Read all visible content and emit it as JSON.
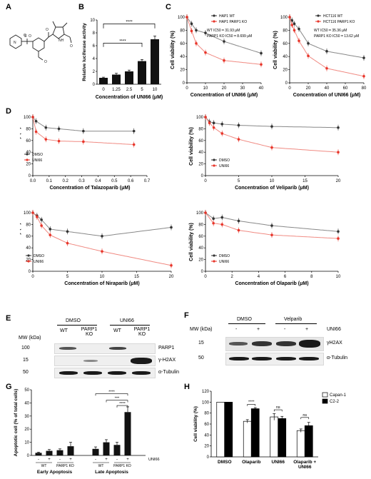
{
  "panels": {
    "A": "A",
    "B": "B",
    "C": "C",
    "D": "D",
    "E": "E",
    "F": "F",
    "G": "G",
    "H": "H"
  },
  "panelB": {
    "chart_data": {
      "type": "bar",
      "categories": [
        "0",
        "1.25",
        "2.5",
        "5",
        "10"
      ],
      "values": [
        1.0,
        1.5,
        2.0,
        3.6,
        7.0
      ],
      "errors": [
        0.1,
        0.2,
        0.2,
        0.25,
        0.5
      ],
      "xlabel": "Concentration of UNI66 (μM)",
      "ylabel": "Relative luciferase activity",
      "ylim": [
        0,
        10
      ],
      "yticks": [
        0,
        2,
        4,
        6,
        8,
        10
      ],
      "significance": [
        "****",
        "****"
      ]
    }
  },
  "panelC1": {
    "chart_data": {
      "type": "scatter",
      "xlabel": "Concentration of UNI66 (μM)",
      "ylabel": "Cell viability (%)",
      "xlim": [
        0,
        40
      ],
      "ylim": [
        0,
        100
      ],
      "xticks": [
        0,
        10,
        20,
        30,
        40
      ],
      "yticks": [
        0,
        20,
        40,
        60,
        80,
        100
      ],
      "series": [
        {
          "name": "HAP1 WT",
          "color": "#333333",
          "x": [
            0,
            2.5,
            5,
            10,
            20,
            40
          ],
          "y": [
            100,
            90,
            80,
            76,
            63,
            45
          ]
        },
        {
          "name": "HAP1 PARP1 KO",
          "color": "#e8362b",
          "x": [
            0,
            2.5,
            5,
            10,
            20,
            40
          ],
          "y": [
            100,
            79,
            60,
            46,
            34,
            28
          ]
        }
      ],
      "annotations": [
        "WT IC50 = 31.93 μM",
        "PARP1 KO IC50 = 8.699 μM"
      ]
    }
  },
  "panelC2": {
    "chart_data": {
      "type": "scatter",
      "xlabel": "Concentration of UNI66 (μM)",
      "ylabel": "Cell viability (%)",
      "xlim": [
        0,
        80
      ],
      "ylim": [
        0,
        100
      ],
      "xticks": [
        0,
        20,
        40,
        60,
        80
      ],
      "yticks": [
        0,
        20,
        40,
        60,
        80,
        100
      ],
      "series": [
        {
          "name": "HCT116 WT",
          "color": "#333333",
          "x": [
            0,
            2.5,
            5,
            10,
            20,
            40,
            80
          ],
          "y": [
            100,
            95,
            90,
            82,
            60,
            48,
            38
          ]
        },
        {
          "name": "HCT116 PARP1 KO",
          "color": "#e8362b",
          "x": [
            0,
            2.5,
            5,
            10,
            20,
            40,
            80
          ],
          "y": [
            100,
            88,
            80,
            64,
            41,
            22,
            10
          ]
        }
      ],
      "annotations": [
        "WT IC50 = 35.36 μM",
        "PARP1 KO IC50 = 13.62 μM"
      ]
    }
  },
  "panelD1": {
    "chart_data": {
      "type": "scatter",
      "xlabel": "Concentration of Talazoparib (μM)",
      "ylabel": "Cell viability (%)",
      "xlim": [
        0,
        0.7
      ],
      "ylim": [
        0,
        100
      ],
      "xticks": [
        0.0,
        0.1,
        0.2,
        0.3,
        0.4,
        0.5,
        0.6,
        0.7
      ],
      "xticklabels": [
        "0.0",
        "0.1",
        "0.2",
        "0.3",
        "0.4",
        "0.5",
        "0.6",
        "0.7"
      ],
      "yticks": [
        0,
        20,
        40,
        60,
        80,
        100
      ],
      "series": [
        {
          "name": "DMSO",
          "color": "#333333",
          "x": [
            0,
            0.02,
            0.08,
            0.16,
            0.31,
            0.62
          ],
          "y": [
            100,
            93,
            82,
            80,
            76,
            76
          ]
        },
        {
          "name": "UNI66",
          "color": "#e8362b",
          "x": [
            0,
            0.02,
            0.08,
            0.16,
            0.31,
            0.62
          ],
          "y": [
            100,
            75,
            62,
            59,
            58,
            53
          ]
        }
      ]
    }
  },
  "panelD2": {
    "chart_data": {
      "type": "scatter",
      "xlabel": "Concentration of Veliparib (μM)",
      "ylabel": "Cell viability (%)",
      "xlim": [
        0,
        20
      ],
      "ylim": [
        0,
        100
      ],
      "xticks": [
        0,
        5,
        10,
        15,
        20
      ],
      "yticks": [
        0,
        20,
        40,
        60,
        80,
        100
      ],
      "series": [
        {
          "name": "DMSO",
          "color": "#333333",
          "x": [
            0,
            0.6,
            1.25,
            2.5,
            5,
            10,
            20
          ],
          "y": [
            100,
            92,
            90,
            88,
            86,
            84,
            82
          ]
        },
        {
          "name": "UNI66",
          "color": "#e8362b",
          "x": [
            0,
            0.6,
            1.25,
            2.5,
            5,
            10,
            20
          ],
          "y": [
            100,
            90,
            82,
            72,
            62,
            48,
            40
          ]
        }
      ]
    }
  },
  "panelD3": {
    "chart_data": {
      "type": "scatter",
      "xlabel": "Concentration of Niraparib (μM)",
      "ylabel": "Cell viability (%)",
      "xlim": [
        0,
        20
      ],
      "ylim": [
        0,
        100
      ],
      "xticks": [
        0,
        5,
        10,
        15,
        20
      ],
      "yticks": [
        0,
        20,
        40,
        60,
        80,
        100
      ],
      "series": [
        {
          "name": "DMSO",
          "color": "#333333",
          "x": [
            0,
            0.6,
            1.25,
            2.5,
            5,
            10,
            20
          ],
          "y": [
            100,
            95,
            88,
            72,
            68,
            60,
            75
          ]
        },
        {
          "name": "UNI66",
          "color": "#e8362b",
          "x": [
            0,
            0.6,
            1.25,
            2.5,
            5,
            10,
            20
          ],
          "y": [
            100,
            93,
            78,
            62,
            48,
            34,
            10
          ]
        }
      ]
    }
  },
  "panelD4": {
    "chart_data": {
      "type": "scatter",
      "xlabel": "Concentration of Olaparib (μM)",
      "ylabel": "Cell viability (%)",
      "xlim": [
        0,
        10
      ],
      "ylim": [
        0,
        100
      ],
      "xticks": [
        0,
        2,
        4,
        6,
        8,
        10
      ],
      "yticks": [
        0,
        20,
        40,
        60,
        80,
        100
      ],
      "series": [
        {
          "name": "DMSO",
          "color": "#333333",
          "x": [
            0,
            0.6,
            1.25,
            2.5,
            5,
            10
          ],
          "y": [
            100,
            90,
            92,
            86,
            78,
            68
          ]
        },
        {
          "name": "UNI66",
          "color": "#e8362b",
          "x": [
            0,
            0.6,
            1.25,
            2.5,
            5,
            10
          ],
          "y": [
            100,
            82,
            80,
            70,
            62,
            56
          ]
        }
      ]
    }
  },
  "panelE": {
    "mw_label": "MW (kDa)",
    "groups": [
      "DMSO",
      "UNI66"
    ],
    "lanes": [
      "WT",
      "PARP1 KO",
      "WT",
      "PARP1 KO"
    ],
    "rows": [
      {
        "mw": "100",
        "name": "PARP1"
      },
      {
        "mw": "15",
        "name": "γ-H2AX"
      },
      {
        "mw": "50",
        "name": "α-Tubulin"
      }
    ]
  },
  "panelF": {
    "mw_label": "MW (kDa)",
    "groups": [
      "DMSO",
      "Velparib"
    ],
    "treatment_label": "UNI66",
    "lanes": [
      "-",
      "+",
      "-",
      "+"
    ],
    "rows": [
      {
        "mw": "15",
        "name": "γH2AX"
      },
      {
        "mw": "50",
        "name": "α-Tubulin"
      }
    ]
  },
  "panelG": {
    "chart_data": {
      "type": "bar",
      "ylabel": "Apoptotic cell (% of total cells)",
      "ylim": [
        0,
        50
      ],
      "yticks": [
        0,
        10,
        20,
        30,
        40,
        50
      ],
      "groups": [
        "Early Apoptosis",
        "Late Apoptosis"
      ],
      "subgroups": [
        "WT",
        "PARP1 KO"
      ],
      "treatment_label": "UNI66",
      "treatment_signs": [
        "-",
        "+",
        "-",
        "+",
        "-",
        "+",
        "-",
        "+"
      ],
      "values": [
        2,
        3.5,
        4,
        7,
        5,
        10,
        8,
        33
      ],
      "errors": [
        0.5,
        1,
        1,
        3,
        1.5,
        2,
        2,
        4
      ],
      "significance": [
        "****",
        "***",
        "****"
      ]
    }
  },
  "panelH": {
    "chart_data": {
      "type": "bar",
      "categories": [
        "DMSO",
        "Olaparib",
        "UNI66",
        "Olaparib + UNI66"
      ],
      "ylabel": "Cell viability (%)",
      "ylim": [
        0,
        120
      ],
      "yticks": [
        0,
        20,
        40,
        60,
        80,
        100,
        120
      ],
      "series": [
        {
          "name": "Capan-1",
          "color": "#ffffff",
          "values": [
            100,
            65,
            73,
            48
          ],
          "errors": [
            0,
            3,
            6,
            3
          ]
        },
        {
          "name": "C2-2",
          "color": "#000000",
          "values": [
            100,
            88,
            70,
            57
          ],
          "errors": [
            0,
            2,
            4,
            6
          ]
        }
      ],
      "significance": [
        "****",
        "ns",
        "ns"
      ]
    }
  }
}
